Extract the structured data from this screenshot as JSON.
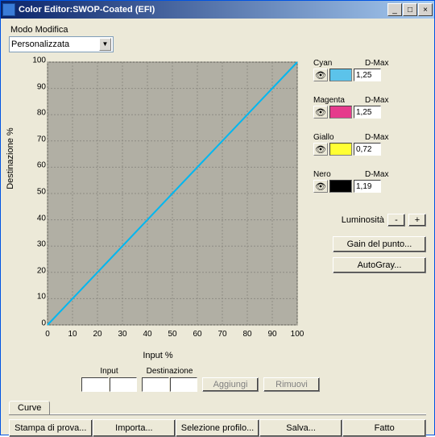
{
  "window": {
    "title": "Color Editor:SWOP-Coated (EFI)"
  },
  "mode": {
    "label": "Modo Modifica",
    "selected": "Personalizzata"
  },
  "chart": {
    "type": "line",
    "xlabel": "Input %",
    "ylabel": "Destinazione %",
    "xlim": [
      0,
      100
    ],
    "ylim": [
      0,
      100
    ],
    "tick_step": 10,
    "background_color": "#b1afa4",
    "grid_color": "#8e8c83",
    "line_color": "#00b7f0",
    "line_width": 2,
    "series": [
      {
        "x": [
          0,
          100
        ],
        "y": [
          0,
          100
        ]
      }
    ]
  },
  "channels": [
    {
      "name": "Cyan",
      "dmax_label": "D-Max",
      "dmax": "1,25",
      "color": "#5cc3ea"
    },
    {
      "name": "Magenta",
      "dmax_label": "D-Max",
      "dmax": "1,25",
      "color": "#e63b8c"
    },
    {
      "name": "Giallo",
      "dmax_label": "D-Max",
      "dmax": "0,72",
      "color": "#ffff33"
    },
    {
      "name": "Nero",
      "dmax_label": "D-Max",
      "dmax": "1,19",
      "color": "#000000"
    }
  ],
  "luminosity": {
    "label": "Luminosità",
    "minus": "-",
    "plus": "+"
  },
  "buttons": {
    "gain": "Gain del punto...",
    "autogray": "AutoGray..."
  },
  "io": {
    "input_label": "Input",
    "dest_label": "Destinazione",
    "add": "Aggiungi",
    "remove": "Rimuovi"
  },
  "tab": {
    "label": "Curve"
  },
  "bottom": {
    "proof": "Stampa di prova...",
    "import": "Importa...",
    "select_profile": "Selezione profilo...",
    "save": "Salva...",
    "done": "Fatto"
  }
}
